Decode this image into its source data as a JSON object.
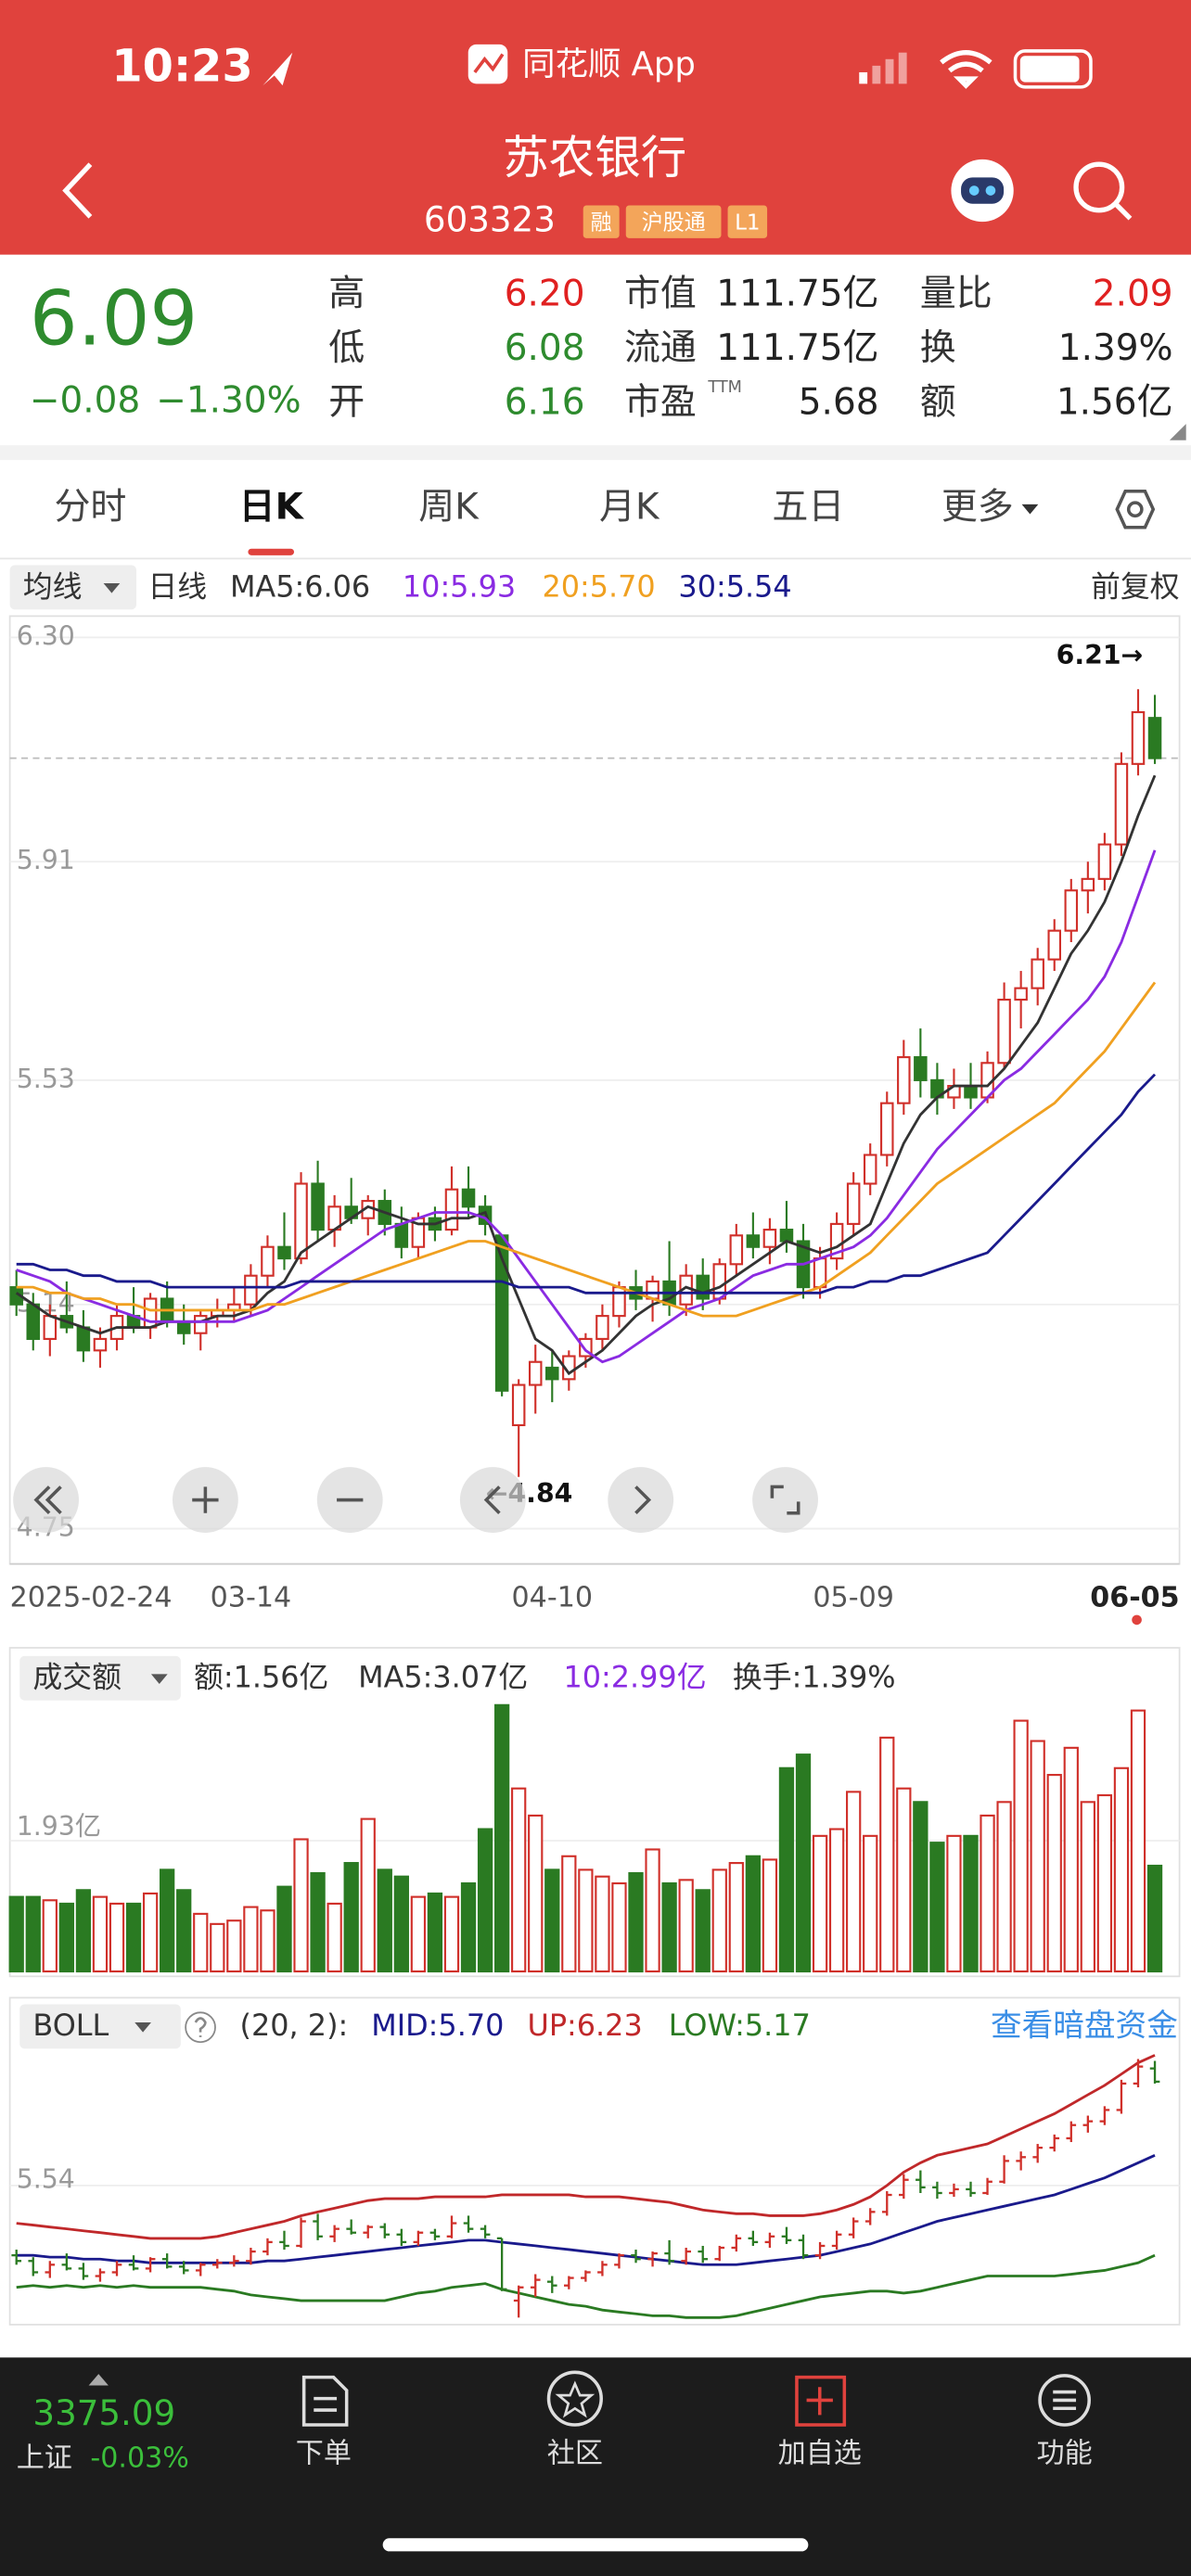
{
  "status_bar": {
    "time": "10:23",
    "app": "同花顺 App"
  },
  "header": {
    "title": "苏农银行",
    "code": "603323",
    "badges": [
      "融",
      "沪股通",
      "L1"
    ]
  },
  "quote": {
    "price": "6.09",
    "change": "−0.08",
    "change_pct": "−1.30%",
    "color": "#2e8b2e",
    "pe_superscript": "TTM",
    "stats": [
      {
        "label": "高",
        "value": "6.20",
        "color": "#e02020"
      },
      {
        "label": "低",
        "value": "6.08",
        "color": "#2e8b2e"
      },
      {
        "label": "开",
        "value": "6.16",
        "color": "#2e8b2e"
      },
      {
        "label": "市值",
        "value": "111.75亿",
        "color": "#222222"
      },
      {
        "label": "流通",
        "value": "111.75亿",
        "color": "#222222"
      },
      {
        "label": "市盈",
        "value": "5.68",
        "color": "#222222"
      },
      {
        "label": "量比",
        "value": "2.09",
        "color": "#e02020"
      },
      {
        "label": "换",
        "value": "1.39%",
        "color": "#222222"
      },
      {
        "label": "额",
        "value": "1.56亿",
        "color": "#222222"
      }
    ]
  },
  "tabs": [
    "分时",
    "日K",
    "周K",
    "月K",
    "五日",
    "更多"
  ],
  "active_tab": 1,
  "kline_toolbar": {
    "selector": "均线",
    "period": "日线",
    "adjust": "前复权"
  },
  "chart_data": [
    {
      "type": "candlestick",
      "up_color": "#d0302a",
      "down_color": "#2a7a22",
      "categories": [
        "2025-02-24",
        null,
        null,
        null,
        null,
        null,
        null,
        null,
        null,
        null,
        null,
        null,
        null,
        null,
        "03-14",
        null,
        null,
        null,
        null,
        null,
        null,
        null,
        null,
        null,
        null,
        null,
        null,
        null,
        null,
        null,
        null,
        null,
        "04-10",
        null,
        null,
        null,
        null,
        null,
        null,
        null,
        null,
        null,
        null,
        null,
        null,
        null,
        null,
        null,
        null,
        null,
        "05-09",
        null,
        null,
        null,
        null,
        null,
        null,
        null,
        null,
        null,
        null,
        null,
        null,
        null,
        null,
        null,
        null,
        null,
        "06-05"
      ],
      "open": [
        5.17,
        5.14,
        5.08,
        5.12,
        5.1,
        5.06,
        5.08,
        5.12,
        5.1,
        5.15,
        5.11,
        5.09,
        5.12,
        5.13,
        5.14,
        5.19,
        5.24,
        5.22,
        5.35,
        5.27,
        5.31,
        5.29,
        5.32,
        5.28,
        5.24,
        5.29,
        5.27,
        5.34,
        5.31,
        5.26,
        4.93,
        5.0,
        5.03,
        5.01,
        5.05,
        5.08,
        5.12,
        5.17,
        5.15,
        5.18,
        5.14,
        5.19,
        5.15,
        5.21,
        5.26,
        5.24,
        5.27,
        5.25,
        5.17,
        5.22,
        5.28,
        5.35,
        5.4,
        5.49,
        5.57,
        5.53,
        5.5,
        5.52,
        5.5,
        5.56,
        5.67,
        5.69,
        5.74,
        5.79,
        5.86,
        5.88,
        5.94,
        6.08,
        6.16
      ],
      "high": [
        5.2,
        5.16,
        5.14,
        5.18,
        5.13,
        5.1,
        5.14,
        5.17,
        5.16,
        5.18,
        5.14,
        5.13,
        5.15,
        5.17,
        5.21,
        5.26,
        5.3,
        5.37,
        5.39,
        5.33,
        5.36,
        5.33,
        5.34,
        5.31,
        5.3,
        5.31,
        5.38,
        5.38,
        5.33,
        5.26,
        5.01,
        5.07,
        5.06,
        5.06,
        5.09,
        5.14,
        5.18,
        5.2,
        5.19,
        5.25,
        5.21,
        5.22,
        5.22,
        5.28,
        5.3,
        5.29,
        5.32,
        5.28,
        5.24,
        5.3,
        5.37,
        5.42,
        5.51,
        5.6,
        5.62,
        5.56,
        5.55,
        5.56,
        5.58,
        5.7,
        5.72,
        5.76,
        5.81,
        5.88,
        5.91,
        5.96,
        6.1,
        6.21,
        6.2
      ],
      "low": [
        5.12,
        5.06,
        5.05,
        5.09,
        5.04,
        5.03,
        5.06,
        5.09,
        5.08,
        5.1,
        5.07,
        5.06,
        5.1,
        5.11,
        5.12,
        5.17,
        5.2,
        5.21,
        5.25,
        5.24,
        5.28,
        5.26,
        5.26,
        5.22,
        5.22,
        5.25,
        5.26,
        5.29,
        5.26,
        4.98,
        4.84,
        4.95,
        4.97,
        4.99,
        5.03,
        5.06,
        5.1,
        5.13,
        5.11,
        5.12,
        5.12,
        5.13,
        5.14,
        5.19,
        5.22,
        5.21,
        5.23,
        5.15,
        5.15,
        5.2,
        5.26,
        5.33,
        5.38,
        5.47,
        5.5,
        5.47,
        5.48,
        5.48,
        5.49,
        5.55,
        5.62,
        5.66,
        5.72,
        5.77,
        5.82,
        5.86,
        5.92,
        6.06,
        6.08
      ],
      "close": [
        5.14,
        5.08,
        5.12,
        5.1,
        5.06,
        5.08,
        5.12,
        5.1,
        5.15,
        5.11,
        5.09,
        5.12,
        5.13,
        5.14,
        5.19,
        5.24,
        5.22,
        5.35,
        5.27,
        5.31,
        5.29,
        5.32,
        5.28,
        5.24,
        5.29,
        5.27,
        5.34,
        5.31,
        5.28,
        4.99,
        5.0,
        5.04,
        5.01,
        5.05,
        5.08,
        5.12,
        5.17,
        5.15,
        5.18,
        5.14,
        5.19,
        5.15,
        5.21,
        5.26,
        5.24,
        5.27,
        5.25,
        5.17,
        5.22,
        5.28,
        5.35,
        5.4,
        5.49,
        5.57,
        5.53,
        5.5,
        5.52,
        5.5,
        5.56,
        5.67,
        5.69,
        5.74,
        5.79,
        5.86,
        5.88,
        5.94,
        6.08,
        6.17,
        6.09
      ],
      "series": [
        {
          "name": "MA5:6.06",
          "color": "#333333",
          "values": [
            5.16,
            5.14,
            5.12,
            5.11,
            5.1,
            5.09,
            5.1,
            5.1,
            5.1,
            5.11,
            5.11,
            5.11,
            5.12,
            5.12,
            5.13,
            5.16,
            5.18,
            5.23,
            5.25,
            5.27,
            5.29,
            5.31,
            5.3,
            5.29,
            5.28,
            5.28,
            5.29,
            5.29,
            5.3,
            5.22,
            5.15,
            5.08,
            5.06,
            5.02,
            5.04,
            5.06,
            5.09,
            5.12,
            5.14,
            5.15,
            5.17,
            5.16,
            5.17,
            5.19,
            5.21,
            5.23,
            5.25,
            5.24,
            5.23,
            5.24,
            5.26,
            5.28,
            5.35,
            5.42,
            5.47,
            5.5,
            5.52,
            5.52,
            5.52,
            5.55,
            5.59,
            5.63,
            5.69,
            5.75,
            5.79,
            5.84,
            5.91,
            5.99,
            6.06
          ]
        },
        {
          "name": "10:5.93",
          "color": "#8a2be2",
          "values": [
            5.2,
            5.19,
            5.18,
            5.16,
            5.15,
            5.14,
            5.13,
            5.12,
            5.11,
            5.11,
            5.11,
            5.11,
            5.11,
            5.11,
            5.12,
            5.13,
            5.15,
            5.17,
            5.19,
            5.21,
            5.23,
            5.25,
            5.27,
            5.28,
            5.29,
            5.3,
            5.3,
            5.3,
            5.29,
            5.26,
            5.22,
            5.18,
            5.14,
            5.1,
            5.06,
            5.04,
            5.05,
            5.07,
            5.09,
            5.11,
            5.13,
            5.14,
            5.15,
            5.17,
            5.19,
            5.2,
            5.21,
            5.21,
            5.22,
            5.23,
            5.24,
            5.26,
            5.29,
            5.33,
            5.37,
            5.41,
            5.44,
            5.47,
            5.5,
            5.53,
            5.55,
            5.58,
            5.61,
            5.64,
            5.67,
            5.71,
            5.77,
            5.85,
            5.93
          ]
        },
        {
          "name": "20:5.70",
          "color": "#f0a020",
          "values": [
            5.17,
            5.17,
            5.16,
            5.16,
            5.15,
            5.15,
            5.14,
            5.14,
            5.13,
            5.13,
            5.13,
            5.13,
            5.13,
            5.13,
            5.13,
            5.14,
            5.14,
            5.15,
            5.16,
            5.17,
            5.18,
            5.19,
            5.2,
            5.21,
            5.22,
            5.23,
            5.24,
            5.25,
            5.25,
            5.24,
            5.23,
            5.22,
            5.21,
            5.2,
            5.19,
            5.18,
            5.17,
            5.16,
            5.15,
            5.14,
            5.13,
            5.12,
            5.12,
            5.12,
            5.13,
            5.14,
            5.15,
            5.16,
            5.17,
            5.19,
            5.21,
            5.23,
            5.26,
            5.29,
            5.32,
            5.35,
            5.37,
            5.39,
            5.41,
            5.43,
            5.45,
            5.47,
            5.49,
            5.52,
            5.55,
            5.58,
            5.62,
            5.66,
            5.7
          ]
        },
        {
          "name": "30:5.54",
          "color": "#1a1a8c",
          "values": [
            5.21,
            5.21,
            5.2,
            5.2,
            5.19,
            5.19,
            5.18,
            5.18,
            5.18,
            5.17,
            5.17,
            5.17,
            5.17,
            5.17,
            5.17,
            5.17,
            5.17,
            5.18,
            5.18,
            5.18,
            5.18,
            5.18,
            5.18,
            5.18,
            5.18,
            5.18,
            5.18,
            5.18,
            5.18,
            5.18,
            5.17,
            5.17,
            5.17,
            5.17,
            5.16,
            5.16,
            5.16,
            5.16,
            5.16,
            5.16,
            5.16,
            5.16,
            5.16,
            5.16,
            5.16,
            5.16,
            5.16,
            5.16,
            5.16,
            5.17,
            5.17,
            5.18,
            5.18,
            5.19,
            5.19,
            5.2,
            5.21,
            5.22,
            5.23,
            5.26,
            5.29,
            5.32,
            5.35,
            5.38,
            5.41,
            5.44,
            5.47,
            5.51,
            5.54
          ]
        }
      ],
      "ylim": [
        4.75,
        6.3
      ],
      "yticks": [
        {
          "value": 6.3,
          "label": "6.30"
        },
        5.91,
        5.53,
        5.14,
        4.75
      ],
      "annotations": {
        "high": "6.21→",
        "low": "←4.84"
      }
    },
    {
      "type": "volume",
      "title": "成交额",
      "legend": [
        {
          "text": "额:1.56亿",
          "color": "#333333"
        },
        {
          "text": "MA5:3.07亿",
          "color": "#333333"
        },
        {
          "text": "10:2.99亿",
          "color": "#8a2be2"
        },
        {
          "text": "换手:1.39%",
          "color": "#333333"
        }
      ],
      "values": [
        1.1,
        1.1,
        1.05,
        1.0,
        1.2,
        1.1,
        1.0,
        1.0,
        1.15,
        1.5,
        1.2,
        0.85,
        0.7,
        0.75,
        0.95,
        0.9,
        1.25,
        1.95,
        1.45,
        1.0,
        1.6,
        2.25,
        1.5,
        1.4,
        1.1,
        1.15,
        1.1,
        1.3,
        2.1,
        3.93,
        2.7,
        2.3,
        1.5,
        1.7,
        1.5,
        1.4,
        1.3,
        1.45,
        1.8,
        1.3,
        1.35,
        1.2,
        1.5,
        1.6,
        1.7,
        1.65,
        3.0,
        3.2,
        2.0,
        2.1,
        2.65,
        2.0,
        3.45,
        2.7,
        2.5,
        1.9,
        2.0,
        2.0,
        2.3,
        2.5,
        3.7,
        3.4,
        2.9,
        3.3,
        2.5,
        2.6,
        3.0,
        3.85,
        1.56
      ],
      "ylim": [
        0,
        4
      ],
      "yticks": [
        {
          "value": 1.93,
          "label": "1.93亿"
        }
      ]
    },
    {
      "type": "boll",
      "title": "BOLL",
      "params": "(20, 2):",
      "link": "查看暗盘资金",
      "series": [
        {
          "name": "MID:5.70",
          "color": "#1a1a8c",
          "values": [
            5.17,
            5.17,
            5.16,
            5.16,
            5.15,
            5.15,
            5.14,
            5.14,
            5.13,
            5.13,
            5.13,
            5.13,
            5.13,
            5.13,
            5.13,
            5.14,
            5.14,
            5.15,
            5.16,
            5.17,
            5.18,
            5.19,
            5.2,
            5.21,
            5.22,
            5.23,
            5.24,
            5.25,
            5.25,
            5.24,
            5.23,
            5.22,
            5.21,
            5.2,
            5.19,
            5.18,
            5.17,
            5.16,
            5.15,
            5.14,
            5.13,
            5.12,
            5.12,
            5.12,
            5.13,
            5.14,
            5.15,
            5.16,
            5.17,
            5.19,
            5.21,
            5.23,
            5.26,
            5.29,
            5.32,
            5.35,
            5.37,
            5.39,
            5.41,
            5.43,
            5.45,
            5.47,
            5.49,
            5.52,
            5.55,
            5.58,
            5.62,
            5.66,
            5.7
          ]
        },
        {
          "name": "UP:6.23",
          "color": "#c0282a",
          "values": [
            5.34,
            5.33,
            5.32,
            5.31,
            5.3,
            5.29,
            5.28,
            5.27,
            5.26,
            5.26,
            5.26,
            5.26,
            5.27,
            5.29,
            5.31,
            5.33,
            5.35,
            5.38,
            5.4,
            5.42,
            5.44,
            5.46,
            5.47,
            5.47,
            5.47,
            5.48,
            5.48,
            5.48,
            5.48,
            5.49,
            5.49,
            5.49,
            5.49,
            5.49,
            5.48,
            5.48,
            5.48,
            5.47,
            5.46,
            5.45,
            5.43,
            5.41,
            5.4,
            5.39,
            5.39,
            5.38,
            5.38,
            5.38,
            5.39,
            5.41,
            5.44,
            5.48,
            5.54,
            5.61,
            5.66,
            5.7,
            5.72,
            5.74,
            5.76,
            5.8,
            5.84,
            5.88,
            5.92,
            5.97,
            6.02,
            6.07,
            6.13,
            6.19,
            6.23
          ]
        },
        {
          "name": "LOW:5.17",
          "color": "#2a7a22",
          "values": [
            5.0,
            5.01,
            5.0,
            5.01,
            5.0,
            5.01,
            5.0,
            5.01,
            5.0,
            5.0,
            5.0,
            5.0,
            4.99,
            4.98,
            4.96,
            4.95,
            4.94,
            4.93,
            4.93,
            4.93,
            4.93,
            4.93,
            4.93,
            4.95,
            4.97,
            4.98,
            5.0,
            5.01,
            5.02,
            4.99,
            4.97,
            4.95,
            4.93,
            4.91,
            4.9,
            4.88,
            4.87,
            4.86,
            4.85,
            4.85,
            4.84,
            4.84,
            4.84,
            4.85,
            4.87,
            4.89,
            4.91,
            4.93,
            4.95,
            4.96,
            4.97,
            4.98,
            4.98,
            4.97,
            4.98,
            5.0,
            5.02,
            5.04,
            5.06,
            5.06,
            5.06,
            5.06,
            5.06,
            5.07,
            5.08,
            5.09,
            5.11,
            5.13,
            5.17
          ]
        }
      ],
      "ylim": [
        4.82,
        6.5
      ],
      "yticks": [
        5.54
      ]
    }
  ],
  "bottom_bar": {
    "index_value": "3375.09",
    "index_name": "上证",
    "index_change": "-0.03%",
    "nav": [
      "下单",
      "社区",
      "加自选",
      "功能"
    ]
  }
}
